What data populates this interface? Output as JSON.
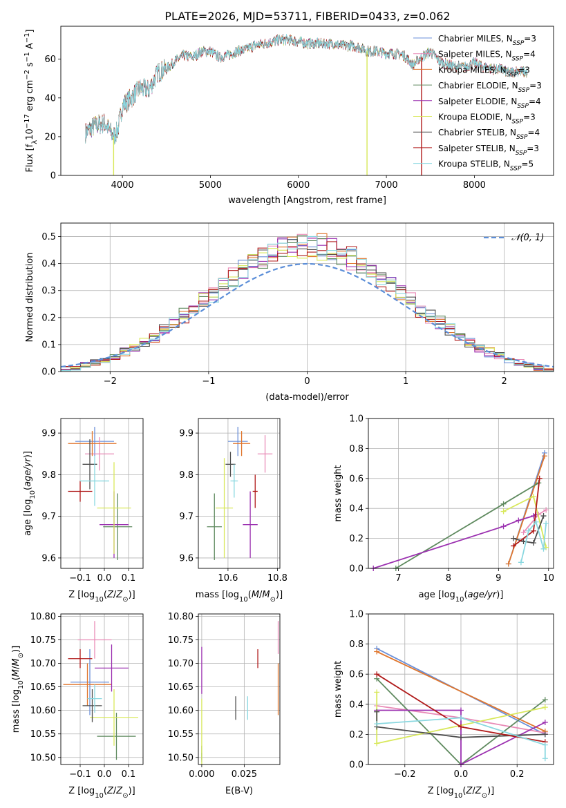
{
  "title": "PLATE=2026, MJD=53711, FIBERID=0433, z=0.062",
  "colors": {
    "Chabrier MILES": "#6a8fd8",
    "Salpeter MILES": "#e98bb7",
    "Kroupa MILES": "#e0762d",
    "Chabrier ELODIE": "#5f8a5f",
    "Salpeter ELODIE": "#9b30b0",
    "Kroupa ELODIE": "#d8e85a",
    "Chabrier STELIB": "#4d4d4d",
    "Salpeter STELIB": "#b01a1a",
    "Kroupa STELIB": "#8ad8e0"
  },
  "chart_data": [
    {
      "id": "spectrum",
      "type": "line",
      "xlabel": "wavelength [Angstrom, rest frame]",
      "ylabel": "Flux [f",
      "ylabel_parts": [
        "Flux [f",
        "λ",
        "10",
        "−17",
        " erg cm",
        "−2",
        " s",
        "−1",
        " A",
        "−1",
        "]"
      ],
      "xlim": [
        3300,
        8900
      ],
      "ylim": [
        0,
        77
      ],
      "xticks": [
        4000,
        5000,
        6000,
        7000,
        8000
      ],
      "yticks": [
        0,
        20,
        40,
        60
      ],
      "continuum": [
        [
          3580,
          22
        ],
        [
          3700,
          26
        ],
        [
          3800,
          27
        ],
        [
          3900,
          20
        ],
        [
          3950,
          24
        ],
        [
          4000,
          36
        ],
        [
          4100,
          40
        ],
        [
          4200,
          45
        ],
        [
          4300,
          44
        ],
        [
          4400,
          53
        ],
        [
          4500,
          55
        ],
        [
          4600,
          59
        ],
        [
          4700,
          62
        ],
        [
          4800,
          61
        ],
        [
          4900,
          64
        ],
        [
          5000,
          64
        ],
        [
          5100,
          61
        ],
        [
          5200,
          62
        ],
        [
          5300,
          64
        ],
        [
          5400,
          65
        ],
        [
          5500,
          67
        ],
        [
          5600,
          68
        ],
        [
          5700,
          69
        ],
        [
          5800,
          70
        ],
        [
          5900,
          70
        ],
        [
          6000,
          69
        ],
        [
          6100,
          68
        ],
        [
          6200,
          68
        ],
        [
          6300,
          68
        ],
        [
          6400,
          68
        ],
        [
          6500,
          67
        ],
        [
          6600,
          67
        ],
        [
          6700,
          66
        ],
        [
          6800,
          64
        ],
        [
          6900,
          64
        ],
        [
          7000,
          63
        ],
        [
          7100,
          63
        ],
        [
          7200,
          62
        ],
        [
          7300,
          57
        ],
        [
          7400,
          61
        ],
        [
          7500,
          64
        ],
        [
          7600,
          59
        ],
        [
          7700,
          57
        ],
        [
          7800,
          56
        ],
        [
          7900,
          56
        ],
        [
          8000,
          58
        ],
        [
          8100,
          56
        ],
        [
          8200,
          55
        ],
        [
          8300,
          55
        ],
        [
          8400,
          53
        ],
        [
          8500,
          54
        ],
        [
          8600,
          53
        ]
      ],
      "spikes": [
        {
          "x": 3900,
          "series": "Kroupa ELODIE"
        },
        {
          "x": 6780,
          "series": "Kroupa ELODIE"
        },
        {
          "x": 7400,
          "series": "Salpeter STELIB"
        }
      ],
      "legend": [
        {
          "name": "Chabrier MILES",
          "nssp": "3"
        },
        {
          "name": "Salpeter MILES",
          "nssp": "4"
        },
        {
          "name": "Kroupa MILES",
          "nssp": "3"
        },
        {
          "name": "Chabrier ELODIE",
          "nssp": "3"
        },
        {
          "name": "Salpeter ELODIE",
          "nssp": "4"
        },
        {
          "name": "Kroupa ELODIE",
          "nssp": "3"
        },
        {
          "name": "Chabrier STELIB",
          "nssp": "4"
        },
        {
          "name": "Salpeter STELIB",
          "nssp": "3"
        },
        {
          "name": "Kroupa STELIB",
          "nssp": "5"
        }
      ],
      "legend_position": "top-right",
      "grid": false
    },
    {
      "id": "residuals",
      "type": "line",
      "xlabel": "(data-model)/error",
      "ylabel": "Normed distribution",
      "xlim": [
        -2.5,
        2.5
      ],
      "ylim": [
        0,
        0.55
      ],
      "xticks": [
        -2,
        -1,
        0,
        1,
        2
      ],
      "yticks": [
        0.0,
        0.1,
        0.2,
        0.3,
        0.4,
        0.5
      ],
      "legend_label": "𝒩(0, 1)",
      "legend_position": "top-right",
      "normal_color": "#5b8ed8",
      "bin_width": 0.1,
      "grid": true
    },
    {
      "id": "age_vs_Z",
      "type": "scatter",
      "xlabel": "Z [log",
      "ylabel": "age",
      "xlim": [
        -0.18,
        0.16
      ],
      "ylim": [
        9.575,
        9.935
      ],
      "xticks": [
        -0.1,
        0.0,
        0.1
      ],
      "xticklabels": [
        "−0.1",
        "0.0",
        "0.1"
      ],
      "yticks": [
        9.6,
        9.7,
        9.8,
        9.9
      ],
      "grid": true,
      "points": [
        {
          "series": "Chabrier MILES",
          "x": -0.04,
          "xerr": 0.08,
          "y": 9.88,
          "yerr": 0.035
        },
        {
          "series": "Salpeter MILES",
          "x": -0.02,
          "xerr": 0.06,
          "y": 9.85,
          "yerr": 0.04
        },
        {
          "series": "Kroupa MILES",
          "x": -0.05,
          "xerr": 0.1,
          "y": 9.875,
          "yerr": 0.03
        },
        {
          "series": "Chabrier ELODIE",
          "x": 0.055,
          "xerr": 0.06,
          "y": 9.675,
          "yerr": 0.08
        },
        {
          "series": "Salpeter ELODIE",
          "x": 0.04,
          "xerr": 0.06,
          "y": 9.68,
          "yerr": 0.08
        },
        {
          "series": "Kroupa ELODIE",
          "x": 0.04,
          "xerr": 0.07,
          "y": 9.72,
          "yerr": 0.11
        },
        {
          "series": "Chabrier STELIB",
          "x": -0.06,
          "xerr": 0.03,
          "y": 9.825,
          "yerr": 0.06
        },
        {
          "series": "Salpeter STELIB",
          "x": -0.1,
          "xerr": 0.05,
          "y": 9.76,
          "yerr": 0.025
        },
        {
          "series": "Kroupa STELIB",
          "x": -0.04,
          "xerr": 0.06,
          "y": 9.785,
          "yerr": 0.06
        }
      ]
    },
    {
      "id": "age_vs_mass",
      "type": "scatter",
      "xlabel": "mass [log",
      "ylabel": "",
      "xlim": [
        10.48,
        10.81
      ],
      "ylim": [
        9.575,
        9.935
      ],
      "xticks": [
        10.6,
        10.8
      ],
      "yticks": [
        9.6,
        9.7,
        9.8,
        9.9
      ],
      "grid": true,
      "points": [
        {
          "series": "Chabrier MILES",
          "x": 10.64,
          "xerr": 0.04,
          "y": 9.88,
          "yerr": 0.035
        },
        {
          "series": "Salpeter MILES",
          "x": 10.75,
          "xerr": 0.03,
          "y": 9.85,
          "yerr": 0.045
        },
        {
          "series": "Kroupa MILES",
          "x": 10.655,
          "xerr": 0.035,
          "y": 9.875,
          "yerr": 0.03
        },
        {
          "series": "Chabrier ELODIE",
          "x": 10.545,
          "xerr": 0.03,
          "y": 9.675,
          "yerr": 0.08
        },
        {
          "series": "Salpeter ELODIE",
          "x": 10.69,
          "xerr": 0.03,
          "y": 9.68,
          "yerr": 0.08
        },
        {
          "series": "Kroupa ELODIE",
          "x": 10.585,
          "xerr": 0.035,
          "y": 9.72,
          "yerr": 0.12
        },
        {
          "series": "Chabrier STELIB",
          "x": 10.61,
          "xerr": 0.02,
          "y": 9.825,
          "yerr": 0.03
        },
        {
          "series": "Salpeter STELIB",
          "x": 10.71,
          "xerr": 0.01,
          "y": 9.76,
          "yerr": 0.04
        },
        {
          "series": "Kroupa STELIB",
          "x": 10.625,
          "xerr": 0.015,
          "y": 9.785,
          "yerr": 0.04
        }
      ]
    },
    {
      "id": "weight_vs_age",
      "type": "line",
      "xlabel": "age",
      "ylabel": "mass weight",
      "xlim": [
        6.4,
        10.1
      ],
      "ylim": [
        0.0,
        1.0
      ],
      "xticks": [
        7,
        8,
        9,
        10
      ],
      "yticks": [
        0.0,
        0.2,
        0.4,
        0.6,
        0.8,
        1.0
      ],
      "grid": true,
      "series": [
        {
          "name": "Chabrier MILES",
          "points": [
            [
              9.2,
              0.03
            ],
            [
              9.92,
              0.77
            ]
          ]
        },
        {
          "name": "Salpeter MILES",
          "points": [
            [
              9.5,
              0.24
            ],
            [
              9.8,
              0.36
            ],
            [
              9.95,
              0.39
            ]
          ]
        },
        {
          "name": "Kroupa MILES",
          "points": [
            [
              9.2,
              0.03
            ],
            [
              9.92,
              0.75
            ]
          ]
        },
        {
          "name": "Chabrier ELODIE",
          "points": [
            [
              6.95,
              0.0
            ],
            [
              9.1,
              0.43
            ],
            [
              9.8,
              0.57
            ]
          ]
        },
        {
          "name": "Salpeter ELODIE",
          "points": [
            [
              6.5,
              0.0
            ],
            [
              9.1,
              0.28
            ],
            [
              9.4,
              0.32
            ],
            [
              9.7,
              0.35
            ],
            [
              9.75,
              0.36
            ]
          ]
        },
        {
          "name": "Kroupa ELODIE",
          "points": [
            [
              9.1,
              0.38
            ],
            [
              9.7,
              0.48
            ],
            [
              9.95,
              0.14
            ]
          ]
        },
        {
          "name": "Chabrier STELIB",
          "points": [
            [
              9.3,
              0.2
            ],
            [
              9.5,
              0.18
            ],
            [
              9.7,
              0.17
            ],
            [
              9.9,
              0.35
            ]
          ]
        },
        {
          "name": "Salpeter STELIB",
          "points": [
            [
              9.3,
              0.15
            ],
            [
              9.7,
              0.25
            ],
            [
              9.82,
              0.6
            ]
          ]
        },
        {
          "name": "Kroupa STELIB",
          "points": [
            [
              9.45,
              0.04
            ],
            [
              9.6,
              0.25
            ],
            [
              9.75,
              0.31
            ],
            [
              9.9,
              0.13
            ],
            [
              9.95,
              0.3
            ]
          ]
        }
      ]
    },
    {
      "id": "mass_vs_Z",
      "type": "scatter",
      "xlabel": "Z [log",
      "ylabel": "mass [log",
      "xlim": [
        -0.18,
        0.16
      ],
      "ylim": [
        10.485,
        10.805
      ],
      "xticks": [
        -0.1,
        0.0,
        0.1
      ],
      "xticklabels": [
        "−0.1",
        "0.0",
        "0.1"
      ],
      "yticks": [
        10.5,
        10.55,
        10.6,
        10.65,
        10.7,
        10.75,
        10.8
      ],
      "grid": true,
      "points": [
        {
          "series": "Chabrier MILES",
          "x": -0.06,
          "xerr": 0.08,
          "y": 10.66,
          "yerr": 0.07
        },
        {
          "series": "Salpeter MILES",
          "x": -0.04,
          "xerr": 0.07,
          "y": 10.75,
          "yerr": 0.04
        },
        {
          "series": "Kroupa MILES",
          "x": -0.07,
          "xerr": 0.1,
          "y": 10.655,
          "yerr": 0.045
        },
        {
          "series": "Chabrier ELODIE",
          "x": 0.05,
          "xerr": 0.08,
          "y": 10.545,
          "yerr": 0.05
        },
        {
          "series": "Salpeter ELODIE",
          "x": 0.03,
          "xerr": 0.07,
          "y": 10.69,
          "yerr": 0.05
        },
        {
          "series": "Kroupa ELODIE",
          "x": 0.04,
          "xerr": 0.1,
          "y": 10.585,
          "yerr": 0.06
        },
        {
          "series": "Chabrier STELIB",
          "x": -0.05,
          "xerr": 0.04,
          "y": 10.61,
          "yerr": 0.035
        },
        {
          "series": "Salpeter STELIB",
          "x": -0.1,
          "xerr": 0.05,
          "y": 10.71,
          "yerr": 0.02
        },
        {
          "series": "Kroupa STELIB",
          "x": -0.04,
          "xerr": 0.03,
          "y": 10.625,
          "yerr": 0.03
        }
      ]
    },
    {
      "id": "mass_vs_ebv",
      "type": "scatter",
      "xlabel": "E(B-V)",
      "ylabel": "",
      "xlim": [
        -0.002,
        0.046
      ],
      "ylim": [
        10.485,
        10.805
      ],
      "xticks": [
        0.0,
        0.025
      ],
      "xticklabels": [
        "0.000",
        "0.025"
      ],
      "yticks": [
        10.5,
        10.55,
        10.6,
        10.65,
        10.7,
        10.75,
        10.8
      ],
      "grid": true,
      "points": [
        {
          "series": "Chabrier MILES",
          "x": 0.0,
          "xerr": 0,
          "y": 10.5,
          "yerr": 0.01
        },
        {
          "series": "Salpeter MILES",
          "x": 0.045,
          "xerr": 0,
          "y": 10.755,
          "yerr": 0.035
        },
        {
          "series": "Kroupa MILES",
          "x": 0.045,
          "xerr": 0,
          "y": 10.645,
          "yerr": 0.055
        },
        {
          "series": "Chabrier ELODIE",
          "x": 0.0,
          "xerr": 0,
          "y": 10.51,
          "yerr": 0.015
        },
        {
          "series": "Salpeter ELODIE",
          "x": 0.0,
          "xerr": 0,
          "y": 10.685,
          "yerr": 0.05
        },
        {
          "series": "Kroupa ELODIE",
          "x": 0.0,
          "xerr": 0,
          "y": 10.555,
          "yerr": 0.07
        },
        {
          "series": "Chabrier STELIB",
          "x": 0.02,
          "xerr": 0,
          "y": 10.605,
          "yerr": 0.025
        },
        {
          "series": "Salpeter STELIB",
          "x": 0.033,
          "xerr": 0,
          "y": 10.71,
          "yerr": 0.02
        },
        {
          "series": "Kroupa STELIB",
          "x": 0.027,
          "xerr": 0,
          "y": 10.605,
          "yerr": 0.025
        }
      ]
    },
    {
      "id": "weight_vs_Z",
      "type": "line",
      "xlabel": "Z [log",
      "ylabel": "mass weight",
      "xlim": [
        -0.33,
        0.33
      ],
      "ylim": [
        0.0,
        1.0
      ],
      "xticks": [
        -0.2,
        0.0,
        0.2
      ],
      "xticklabels": [
        "−0.2",
        "0.0",
        "0.2"
      ],
      "yticks": [
        0.0,
        0.2,
        0.4,
        0.6,
        0.8,
        1.0
      ],
      "grid": true,
      "series": [
        {
          "name": "Chabrier MILES",
          "points": [
            [
              -0.3,
              0.77
            ],
            [
              0.3,
              0.2
            ]
          ]
        },
        {
          "name": "Salpeter MILES",
          "points": [
            [
              -0.3,
              0.39
            ],
            [
              0.0,
              0.31
            ],
            [
              0.3,
              0.21
            ]
          ]
        },
        {
          "name": "Kroupa MILES",
          "points": [
            [
              -0.3,
              0.75
            ],
            [
              0.3,
              0.22
            ]
          ]
        },
        {
          "name": "Chabrier ELODIE",
          "points": [
            [
              -0.3,
              0.57
            ],
            [
              0.0,
              0.0
            ],
            [
              0.3,
              0.43
            ]
          ]
        },
        {
          "name": "Salpeter ELODIE",
          "points": [
            [
              -0.3,
              0.36
            ],
            [
              0.0,
              0.36
            ],
            [
              0.0,
              0.0
            ],
            [
              0.3,
              0.28
            ]
          ]
        },
        {
          "name": "Kroupa ELODIE",
          "points": [
            [
              -0.3,
              0.48
            ],
            [
              -0.3,
              0.14
            ],
            [
              0.3,
              0.38
            ]
          ]
        },
        {
          "name": "Chabrier STELIB",
          "points": [
            [
              -0.3,
              0.35
            ],
            [
              -0.3,
              0.25
            ],
            [
              0.0,
              0.18
            ],
            [
              0.3,
              0.2
            ]
          ]
        },
        {
          "name": "Salpeter STELIB",
          "points": [
            [
              -0.3,
              0.6
            ],
            [
              0.0,
              0.25
            ],
            [
              0.3,
              0.15
            ]
          ]
        },
        {
          "name": "Kroupa STELIB",
          "points": [
            [
              -0.3,
              0.27
            ],
            [
              0.0,
              0.31
            ],
            [
              0.3,
              0.13
            ],
            [
              0.3,
              0.04
            ]
          ]
        }
      ]
    }
  ]
}
